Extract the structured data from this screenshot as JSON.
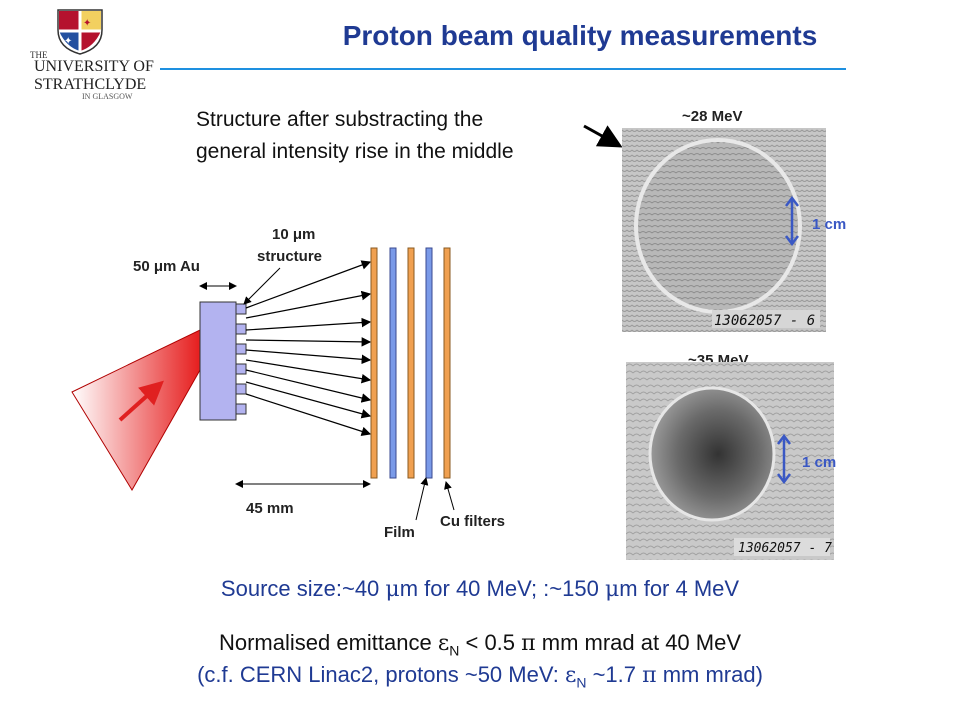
{
  "header": {
    "title": "Proton beam quality measurements",
    "logo": {
      "line_the": "THE",
      "line1": "UNIVERSITY OF",
      "line2": "STRATHCLYDE",
      "line3": "IN GLASGOW"
    }
  },
  "note": {
    "line1": "Structure after substracting the",
    "line2": "general intensity rise in the middle"
  },
  "diagram": {
    "label_gold": "50 μm Au",
    "label_structure_1": "10 μm",
    "label_structure_2": "structure",
    "label_distance": "45 mm",
    "label_film": "Film",
    "label_cu": "Cu filters"
  },
  "images": [
    {
      "energy": "~28 MeV",
      "scale": "1 cm",
      "annotation": "13062057 - 6"
    },
    {
      "energy": "~35 MeV",
      "scale": "1 cm",
      "annotation": "13062057 - 7"
    }
  ],
  "summary": {
    "source_pre": "Source size:~40 ",
    "source_mu1": "μ",
    "source_mid": "m for 40 MeV; :~150 ",
    "source_mu2": "μ",
    "source_post": "m for 4 MeV",
    "emit_pre": "Normalised emittance ",
    "emit_eps": "ε",
    "emit_sub": "N",
    "emit_mid": " < 0.5 ",
    "emit_pi": "π",
    "emit_post": " mm mrad at 40 MeV",
    "cf_pre": "(c.f. CERN Linac2, protons ~50 MeV: ",
    "cf_eps": "ε",
    "cf_sub": "N",
    "cf_mid": " ~1.7 ",
    "cf_pi": "π",
    "cf_post": " mm mrad)"
  },
  "colors": {
    "title": "#1f3a93",
    "rule": "#1e90e0",
    "cu_filter": "#f0a050",
    "film": "#7a9ae8",
    "target": "#b3b3f0",
    "beam": "#e02020"
  }
}
